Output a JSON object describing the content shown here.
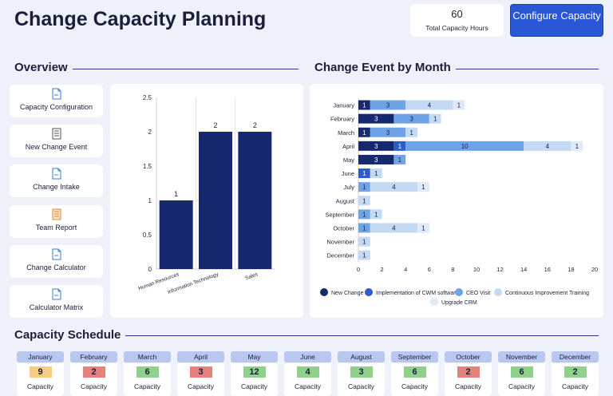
{
  "header": {
    "title": "Change Capacity Planning",
    "kpi_value": "60",
    "kpi_label": "Total Capacity Hours",
    "configure_label": "Configure Capacity"
  },
  "sections": {
    "overview": "Overview",
    "monthly": "Change Event by Month",
    "schedule": "Capacity Schedule"
  },
  "nav": [
    {
      "label": "Capacity Configuration",
      "icon": "document-icon"
    },
    {
      "label": "New Change Event",
      "icon": "form-icon"
    },
    {
      "label": "Change Intake",
      "icon": "document-icon"
    },
    {
      "label": "Team Report",
      "icon": "report-icon"
    },
    {
      "label": "Change Calculator",
      "icon": "document-icon"
    },
    {
      "label": "Calculator Matrix",
      "icon": "document-icon"
    }
  ],
  "colors": {
    "new_change": "#17296e",
    "cwm": "#2e5cc7",
    "ceo": "#6fa3e8",
    "cit": "#c4d9f3",
    "upgrade": "#dfe9f8",
    "good": "#8fd08a",
    "bad": "#e6807a",
    "warn": "#f5cd7c"
  },
  "chart_data": [
    {
      "type": "bar",
      "categories": [
        "Human Resources",
        "Information Technology",
        "Sales"
      ],
      "values": [
        1,
        2,
        2
      ],
      "ylim": [
        0,
        2.5
      ],
      "yticks": [
        "0",
        "0.5",
        "1",
        "1.5",
        "2",
        "2.5"
      ],
      "grid": true
    },
    {
      "type": "bar",
      "orientation": "horizontal",
      "stacked": true,
      "categories": [
        "January",
        "February",
        "March",
        "April",
        "May",
        "June",
        "July",
        "August",
        "September",
        "October",
        "November",
        "December"
      ],
      "series": [
        {
          "name": "New Change",
          "color": "#17296e",
          "values": [
            1,
            3,
            1,
            3,
            3,
            0,
            0,
            0,
            0,
            0,
            0,
            0
          ]
        },
        {
          "name": "Implementation of CWM software",
          "color": "#2e5cc7",
          "values": [
            0,
            0,
            0,
            1,
            0,
            1,
            0,
            0,
            0,
            0,
            0,
            0
          ]
        },
        {
          "name": "CEO Visit",
          "color": "#6fa3e8",
          "values": [
            3,
            3,
            3,
            10,
            1,
            0,
            1,
            0,
            1,
            1,
            0,
            0
          ]
        },
        {
          "name": "Continuous Improvement Training",
          "color": "#c4d9f3",
          "values": [
            4,
            1,
            1,
            4,
            0,
            1,
            4,
            1,
            1,
            4,
            1,
            1
          ]
        },
        {
          "name": "Upgrade CRM",
          "color": "#dfe9f8",
          "values": [
            1,
            0,
            0,
            1,
            0,
            0,
            1,
            0,
            0,
            1,
            0,
            0
          ]
        }
      ],
      "xlim": [
        0,
        20
      ],
      "xticks": [
        "0",
        "2",
        "4",
        "6",
        "8",
        "10",
        "12",
        "14",
        "16",
        "18",
        "20"
      ],
      "legend": "bottom"
    }
  ],
  "schedule": [
    {
      "month": "January",
      "value": "9",
      "label": "Capacity",
      "status": "warn"
    },
    {
      "month": "February",
      "value": "2",
      "label": "Capacity",
      "status": "bad"
    },
    {
      "month": "March",
      "value": "6",
      "label": "Capacity",
      "status": "good"
    },
    {
      "month": "April",
      "value": "3",
      "label": "Capacity",
      "status": "bad"
    },
    {
      "month": "May",
      "value": "12",
      "label": "Capacity",
      "status": "good"
    },
    {
      "month": "June",
      "value": "4",
      "label": "Capacity",
      "status": "good"
    },
    {
      "month": "August",
      "value": "3",
      "label": "Capacity",
      "status": "good"
    },
    {
      "month": "September",
      "value": "6",
      "label": "Capacity",
      "status": "good"
    },
    {
      "month": "October",
      "value": "2",
      "label": "Capacity",
      "status": "bad"
    },
    {
      "month": "November",
      "value": "6",
      "label": "Capacity",
      "status": "good"
    },
    {
      "month": "December",
      "value": "2",
      "label": "Capacity",
      "status": "good"
    }
  ]
}
